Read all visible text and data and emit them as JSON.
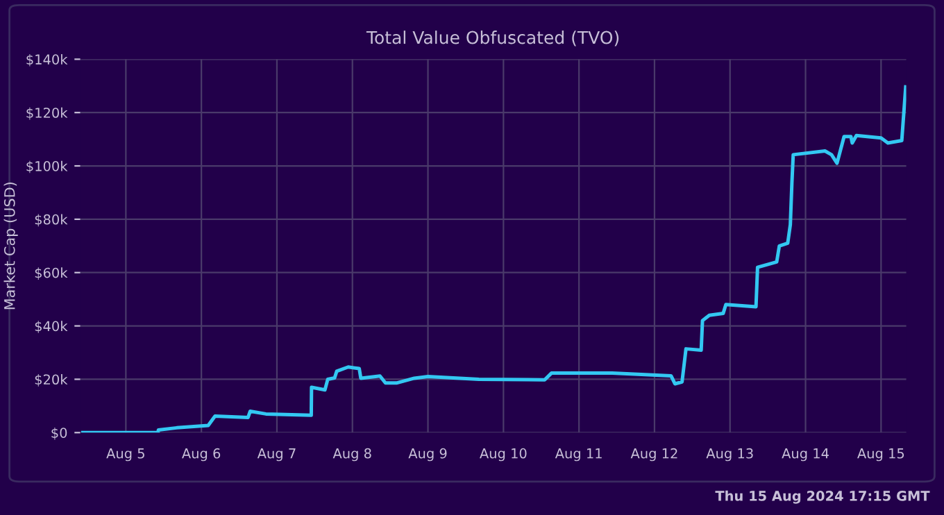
{
  "chart_data": {
    "type": "line",
    "title": "Total Value Obfuscated (TVO)",
    "ylabel": "Market Cap (USD)",
    "x": [
      "2024-08-04T10:20",
      "2024-08-05T10:15",
      "2024-08-05T10:20",
      "2024-08-05T16:10",
      "2024-08-06T02:10",
      "2024-08-06T04:20",
      "2024-08-06T14:50",
      "2024-08-06T15:30",
      "2024-08-06T20:30",
      "2024-08-07T10:55",
      "2024-08-07T11:00",
      "2024-08-07T15:15",
      "2024-08-07T16:10",
      "2024-08-07T18:20",
      "2024-08-07T19:00",
      "2024-08-07T22:40",
      "2024-08-08T02:10",
      "2024-08-08T02:40",
      "2024-08-08T08:45",
      "2024-08-08T10:30",
      "2024-08-08T14:00",
      "2024-08-08T19:40",
      "2024-08-09T00:00",
      "2024-08-09T16:10",
      "2024-08-10T13:05",
      "2024-08-10T15:15",
      "2024-08-11T10:30",
      "2024-08-12T05:15",
      "2024-08-12T06:30",
      "2024-08-12T08:45",
      "2024-08-12T10:00",
      "2024-08-12T14:50",
      "2024-08-12T15:15",
      "2024-08-12T17:25",
      "2024-08-12T21:50",
      "2024-08-12T22:40",
      "2024-08-13T08:15",
      "2024-08-13T08:45",
      "2024-08-13T14:50",
      "2024-08-13T15:40",
      "2024-08-13T18:20",
      "2024-08-13T19:10",
      "2024-08-13T19:40",
      "2024-08-13T20:05",
      "2024-08-14T06:10",
      "2024-08-14T08:15",
      "2024-08-14T10:00",
      "2024-08-14T12:15",
      "2024-08-14T14:25",
      "2024-08-14T14:50",
      "2024-08-14T16:10",
      "2024-08-15T00:00",
      "2024-08-15T02:10",
      "2024-08-15T06:35",
      "2024-08-15T07:50"
    ],
    "series": [
      {
        "color": "#33c8f2",
        "values": [
          0,
          0,
          1000,
          1800,
          2700,
          6200,
          5700,
          8000,
          7000,
          6500,
          17000,
          16000,
          20000,
          20500,
          23000,
          24600,
          24000,
          20400,
          21200,
          18600,
          18600,
          20400,
          21000,
          20000,
          19800,
          22300,
          22300,
          21300,
          18300,
          19000,
          31400,
          30900,
          42000,
          44000,
          44700,
          48000,
          47200,
          62000,
          64000,
          70000,
          71000,
          78000,
          93700,
          104200,
          105600,
          104200,
          101000,
          111000,
          111000,
          108600,
          111400,
          110500,
          108600,
          109500,
          129600
        ]
      }
    ],
    "xlim": [
      "2024-08-04T09:30",
      "2024-08-15T08:00"
    ],
    "xticks": [
      {
        "value": "2024-08-05",
        "label": "Aug 5"
      },
      {
        "value": "2024-08-06",
        "label": "Aug 6"
      },
      {
        "value": "2024-08-07",
        "label": "Aug 7"
      },
      {
        "value": "2024-08-08",
        "label": "Aug 8"
      },
      {
        "value": "2024-08-09",
        "label": "Aug 9"
      },
      {
        "value": "2024-08-10",
        "label": "Aug 10"
      },
      {
        "value": "2024-08-11",
        "label": "Aug 11"
      },
      {
        "value": "2024-08-12",
        "label": "Aug 12"
      },
      {
        "value": "2024-08-13",
        "label": "Aug 13"
      },
      {
        "value": "2024-08-14",
        "label": "Aug 14"
      },
      {
        "value": "2024-08-15",
        "label": "Aug 15"
      }
    ],
    "ylim": [
      0,
      140000
    ],
    "yticks": [
      {
        "value": 0,
        "label": "$0"
      },
      {
        "value": 20000,
        "label": "$20k"
      },
      {
        "value": 40000,
        "label": "$40k"
      },
      {
        "value": 60000,
        "label": "$60k"
      },
      {
        "value": 80000,
        "label": "$80k"
      },
      {
        "value": 100000,
        "label": "$100k"
      },
      {
        "value": 120000,
        "label": "$120k"
      },
      {
        "value": 140000,
        "label": "$140k"
      }
    ],
    "grid": true,
    "legend": false,
    "marker": "none",
    "line_style": "solid",
    "annotations": [
      "Thu 15 Aug 2024 17:15 GMT"
    ]
  }
}
